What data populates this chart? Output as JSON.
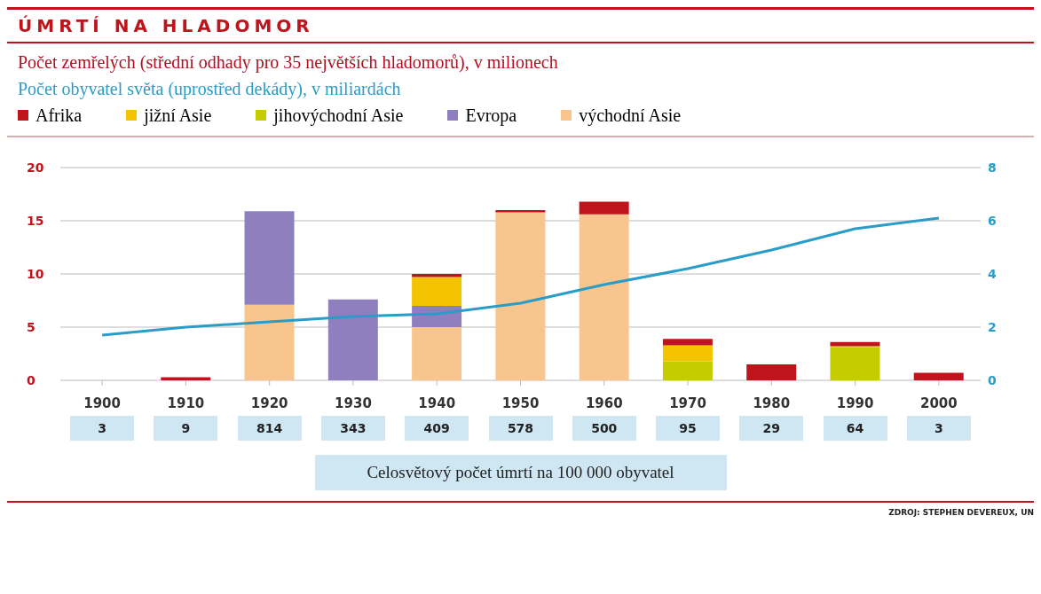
{
  "chart_data": {
    "type": "bar",
    "stacked": true,
    "title": "ÚMRTÍ NA HLADOMOR",
    "ylabel": "Počet zemřelých (střední odhady pro 35 největších hladomorů), v milionech",
    "categories": [
      "1900",
      "1910",
      "1920",
      "1930",
      "1940",
      "1950",
      "1960",
      "1970",
      "1980",
      "1990",
      "2000"
    ],
    "series": [
      {
        "name": "východní Asie",
        "color": "#f8c58e",
        "values": [
          0,
          0,
          7.1,
          0,
          5.0,
          15.8,
          15.6,
          0,
          0,
          0,
          0
        ]
      },
      {
        "name": "Evropa",
        "color": "#8f7fbf",
        "values": [
          0,
          0,
          8.8,
          7.6,
          2.0,
          0,
          0,
          0,
          0,
          0,
          0
        ]
      },
      {
        "name": "jihovýchodní Asie",
        "color": "#c5cc00",
        "values": [
          0,
          0,
          0,
          0,
          0,
          0,
          0,
          1.8,
          0,
          3.1,
          0
        ]
      },
      {
        "name": "jižní Asie",
        "color": "#f5c400",
        "values": [
          0,
          0,
          0,
          0,
          2.7,
          0,
          0,
          1.5,
          0,
          0.1,
          0
        ]
      },
      {
        "name": "Afrika",
        "color": "#c0141c",
        "values": [
          0,
          0.3,
          0,
          0,
          0.3,
          0.2,
          1.2,
          0.6,
          1.5,
          0.4,
          0.7
        ]
      },
      {
        "type": "line",
        "axis": "y2",
        "color": "#2a9cc8",
        "values": [
          1.7,
          2.0,
          2.2,
          2.4,
          2.5,
          2.9,
          3.6,
          4.2,
          4.9,
          5.7,
          6.1
        ]
      }
    ],
    "ylim": [
      0,
      20
    ],
    "yticks": [
      0,
      5,
      10,
      15,
      20
    ],
    "y2lim": [
      0,
      8
    ],
    "y2ticks": [
      0,
      2,
      4,
      6,
      8
    ],
    "grid": "y",
    "legend": "top left",
    "marker": "none",
    "annotations": [
      "Počet obyvatel světa (uprostřed dekády), v miliardách",
      "3",
      "9",
      "814",
      "343",
      "409",
      "578",
      "500",
      "95",
      "29",
      "64",
      "3",
      "Celosvětový počet úmrtí na 100 000 obyvatel",
      "ZDROJ: STEPHEN DEVEREUX, UN"
    ]
  }
}
